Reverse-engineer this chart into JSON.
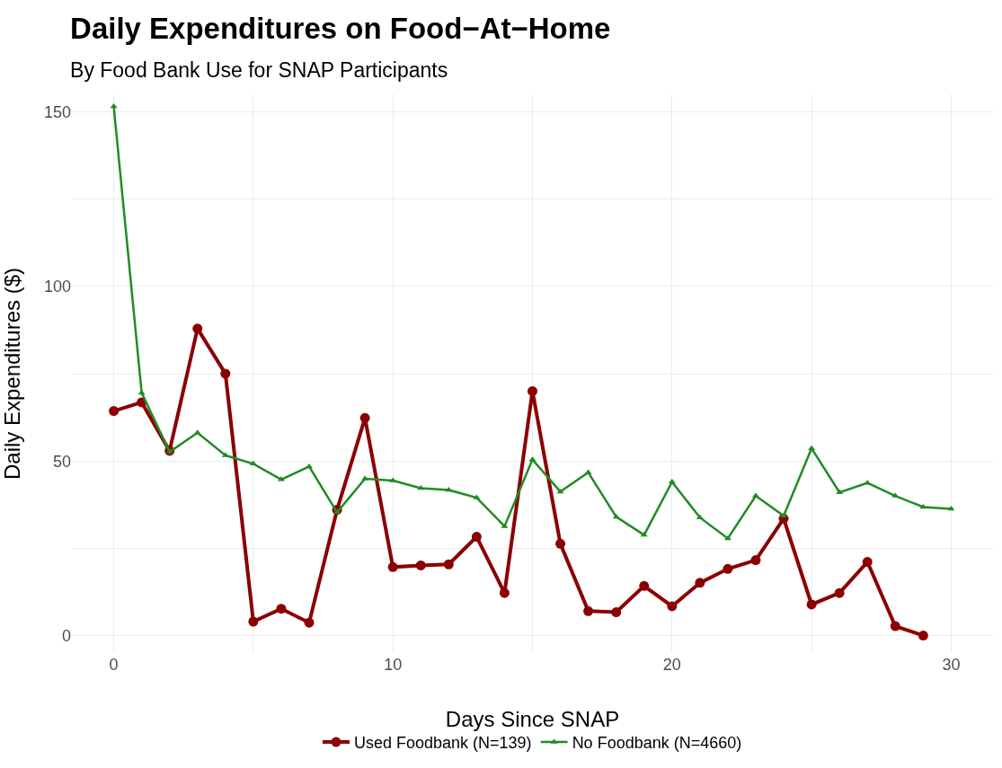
{
  "chart_data": {
    "type": "line",
    "title": "Daily Expenditures on Food−At−Home",
    "subtitle": "By Food Bank Use for SNAP Participants",
    "xlabel": "Days Since SNAP",
    "ylabel": "Daily Expenditures ($)",
    "series": [
      {
        "name": "Used Foodbank (N=139)",
        "color": "#8b0000",
        "marker": "circle",
        "x": [
          0,
          1,
          2,
          3,
          4,
          5,
          6,
          7,
          8,
          9,
          10,
          11,
          12,
          13,
          14,
          15,
          16,
          17,
          18,
          19,
          20,
          21,
          22,
          23,
          24,
          25,
          26,
          27,
          28,
          29
        ],
        "values": [
          64.3,
          66.8,
          52.9,
          87.9,
          75.0,
          4.0,
          7.7,
          3.7,
          36.0,
          62.3,
          19.6,
          20.1,
          20.4,
          28.3,
          12.2,
          70.0,
          26.3,
          7.0,
          6.7,
          14.2,
          8.4,
          15.1,
          19.1,
          21.6,
          33.5,
          8.9,
          12.2,
          21.1,
          2.7,
          0
        ]
      },
      {
        "name": "No Foodbank (N=4660)",
        "color": "#228b22",
        "marker": "triangle",
        "x": [
          0,
          1,
          2,
          3,
          4,
          5,
          6,
          7,
          8,
          9,
          10,
          11,
          12,
          13,
          14,
          15,
          16,
          17,
          18,
          19,
          20,
          21,
          22,
          23,
          24,
          25,
          26,
          27,
          28,
          29,
          30
        ],
        "values": [
          151.5,
          69.5,
          52.6,
          58.1,
          51.6,
          49.2,
          44.7,
          48.4,
          35.3,
          44.9,
          44.4,
          42.2,
          41.7,
          39.5,
          31.3,
          50.4,
          41.2,
          46.7,
          34.0,
          28.8,
          44.0,
          33.8,
          27.8,
          40.0,
          34.3,
          53.6,
          41.0,
          43.7,
          40.0,
          36.8,
          36.3
        ]
      }
    ],
    "xlim": [
      -1.5,
      31.5
    ],
    "xticks": [
      0,
      {
        "value": 5,
        "label": null
      },
      10,
      {
        "value": 15,
        "label": null
      },
      20,
      {
        "value": 25,
        "label": null
      },
      30
    ],
    "ylim": [
      -5,
      155
    ],
    "yticks": [
      0,
      {
        "value": 25,
        "label": null
      },
      50,
      {
        "value": 75,
        "label": null
      },
      100,
      {
        "value": 125,
        "label": null
      },
      150
    ],
    "grid": true,
    "legend": "bottom",
    "line_style": "solid"
  }
}
